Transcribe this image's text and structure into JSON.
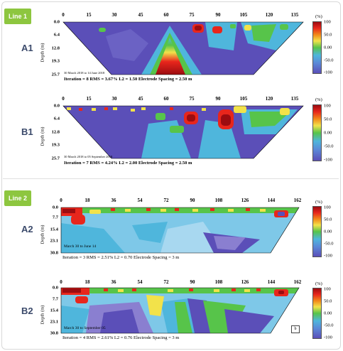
{
  "colors": {
    "tab": "#8dc63f",
    "deep": "#5b4fb8",
    "mid": "#4fb6dc",
    "green": "#57c44a",
    "yellow": "#f2e24a",
    "red": "#e8261c",
    "darkred": "#9c0c10"
  },
  "line1": {
    "tab": "Line 1",
    "xticks": [
      "0",
      "15",
      "30",
      "45",
      "60",
      "75",
      "90",
      "105",
      "120",
      "135"
    ],
    "yticks": [
      "0.0",
      "6.4",
      "12.8",
      "19.3",
      "25.7"
    ],
    "ylabel": "Depth (m)",
    "colorbar": {
      "unit": "(%)",
      "labels": [
        "100",
        "50.0",
        "0.00",
        "-50.0",
        "-100"
      ]
    },
    "panels": [
      {
        "label": "A1",
        "date": "30 March 2018 to 14 June 2018",
        "stats": "Iteration = 8   RMS = 3.67%   L2 = 1.50     Electrode Spacing = 2.50 m"
      },
      {
        "label": "B1",
        "date": "30 March 2018 to 05 September 2018",
        "stats": "Iteration = 7   RMS = 4.24%   L2 = 2.00     Electrode Spacing = 2.50 m"
      }
    ]
  },
  "line2": {
    "tab": "Line 2",
    "xticks": [
      "0",
      "18",
      "36",
      "54",
      "72",
      "90",
      "108",
      "126",
      "144",
      "162"
    ],
    "yticks": [
      "0.0",
      "7.7",
      "15.4",
      "23.1",
      "30.8"
    ],
    "ylabel": "Depth (m)",
    "colorbar": {
      "unit": "(%)",
      "labels": [
        "100",
        "50.0",
        "0.00",
        "-50.0",
        "-100"
      ]
    },
    "panels": [
      {
        "label": "A2",
        "date": "March 30 to June 14",
        "stats": "Iteration = 3   RMS = 2.51%   L2 = 0.70   Electrode Spacing = 3 m",
        "box": ""
      },
      {
        "label": "B2",
        "date": "March 30 to September 05",
        "stats": "Iteration = 4   RMS = 2.61%   L2 = 0.76   Electrode Spacing = 3 m",
        "box": "b"
      }
    ]
  }
}
